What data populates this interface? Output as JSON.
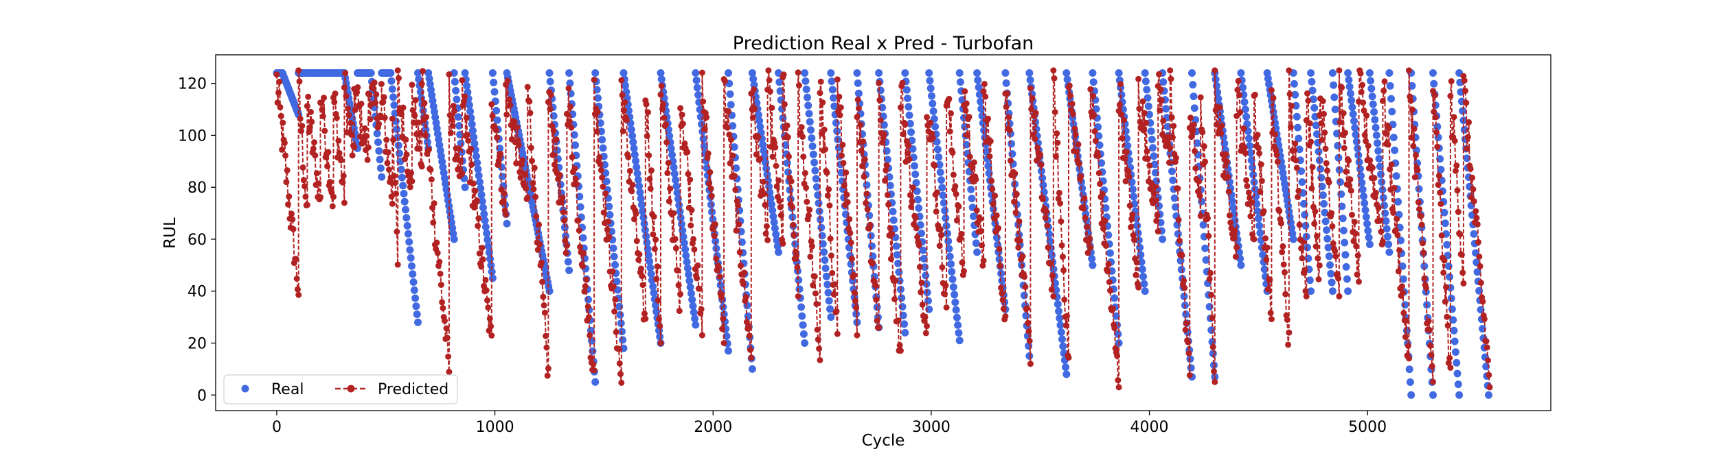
{
  "chart_data": {
    "type": "scatter",
    "title": "Prediction Real x Pred - Turbofan",
    "xlabel": "Cycle",
    "ylabel": "RUL",
    "xlim": [
      -280,
      5840
    ],
    "ylim": [
      -6,
      131
    ],
    "x_ticks": [
      0,
      1000,
      2000,
      3000,
      4000,
      5000
    ],
    "x_tick_labels": [
      "0",
      "1000",
      "2000",
      "3000",
      "4000",
      "5000"
    ],
    "y_ticks": [
      0,
      20,
      40,
      60,
      80,
      100,
      120
    ],
    "y_tick_labels": [
      "0",
      "20",
      "40",
      "60",
      "80",
      "100",
      "120"
    ],
    "grid": false,
    "legend_position": "lower-left",
    "colors": {
      "real": "#4169E1",
      "predicted": "#B22222"
    },
    "series": [
      {
        "name": "Real",
        "style": "markers",
        "segments": [
          [
            0,
            26,
            124,
            124
          ],
          [
            26,
            100,
            124,
            108
          ],
          [
            100,
            185,
            124,
            124
          ],
          [
            185,
            248,
            124,
            124
          ],
          [
            248,
            310,
            124,
            124
          ],
          [
            310,
            370,
            124,
            95
          ],
          [
            370,
            432,
            124,
            124
          ],
          [
            432,
            481,
            124,
            84
          ],
          [
            481,
            522,
            124,
            124
          ],
          [
            522,
            647,
            124,
            28
          ],
          [
            647,
            695,
            124,
            95
          ],
          [
            695,
            813,
            124,
            60
          ],
          [
            813,
            863,
            124,
            80
          ],
          [
            863,
            990,
            124,
            45
          ],
          [
            990,
            1055,
            124,
            66
          ],
          [
            1055,
            1250,
            124,
            40
          ],
          [
            1250,
            1340,
            124,
            48
          ],
          [
            1340,
            1460,
            124,
            5
          ],
          [
            1460,
            1590,
            124,
            18
          ],
          [
            1590,
            1760,
            124,
            20
          ],
          [
            1760,
            1920,
            124,
            27
          ],
          [
            1920,
            2070,
            124,
            17
          ],
          [
            2070,
            2180,
            124,
            10
          ],
          [
            2180,
            2300,
            124,
            55
          ],
          [
            2300,
            2420,
            124,
            20
          ],
          [
            2420,
            2540,
            124,
            30
          ],
          [
            2540,
            2660,
            124,
            28
          ],
          [
            2660,
            2760,
            124,
            26
          ],
          [
            2760,
            2880,
            124,
            24
          ],
          [
            2880,
            2990,
            124,
            33
          ],
          [
            2990,
            3130,
            124,
            21
          ],
          [
            3130,
            3210,
            124,
            55
          ],
          [
            3210,
            3340,
            124,
            33
          ],
          [
            3340,
            3450,
            124,
            15
          ],
          [
            3450,
            3620,
            124,
            8
          ],
          [
            3620,
            3740,
            124,
            50
          ],
          [
            3740,
            3860,
            124,
            20
          ],
          [
            3860,
            3980,
            124,
            40
          ],
          [
            3980,
            4060,
            124,
            60
          ],
          [
            4060,
            4195,
            124,
            7
          ],
          [
            4195,
            4300,
            124,
            7
          ],
          [
            4300,
            4420,
            124,
            50
          ],
          [
            4420,
            4540,
            124,
            40
          ],
          [
            4540,
            4660,
            124,
            60
          ],
          [
            4660,
            4740,
            124,
            40
          ],
          [
            4740,
            4840,
            124,
            40
          ],
          [
            4840,
            4910,
            124,
            40
          ],
          [
            4910,
            5010,
            124,
            58
          ],
          [
            5010,
            5100,
            124,
            55
          ],
          [
            5100,
            5200,
            124,
            0
          ],
          [
            5200,
            5300,
            124,
            0
          ],
          [
            5300,
            5420,
            124,
            0
          ],
          [
            5420,
            5555,
            124,
            0
          ]
        ]
      },
      {
        "name": "Predicted",
        "style": "dashed-line-markers",
        "segments": [
          [
            0,
            100,
            120,
            40
          ],
          [
            100,
            140,
            118,
            68
          ],
          [
            140,
            200,
            112,
            74
          ],
          [
            200,
            260,
            118,
            73
          ],
          [
            260,
            310,
            115,
            76
          ],
          [
            310,
            355,
            118,
            90
          ],
          [
            355,
            420,
            118,
            92
          ],
          [
            420,
            480,
            118,
            105
          ],
          [
            480,
            530,
            116,
            75
          ],
          [
            530,
            555,
            112,
            50
          ],
          [
            555,
            620,
            118,
            80
          ],
          [
            620,
            665,
            115,
            90
          ],
          [
            665,
            790,
            118,
            10
          ],
          [
            790,
            850,
            115,
            80
          ],
          [
            850,
            985,
            115,
            20
          ],
          [
            985,
            1050,
            118,
            68
          ],
          [
            1050,
            1150,
            118,
            74
          ],
          [
            1150,
            1245,
            118,
            7
          ],
          [
            1245,
            1330,
            116,
            55
          ],
          [
            1330,
            1455,
            118,
            6
          ],
          [
            1455,
            1580,
            118,
            5
          ],
          [
            1580,
            1690,
            118,
            27
          ],
          [
            1690,
            1760,
            118,
            22
          ],
          [
            1760,
            1850,
            118,
            34
          ],
          [
            1850,
            1950,
            118,
            25
          ],
          [
            1950,
            2050,
            118,
            22
          ],
          [
            2050,
            2175,
            118,
            15
          ],
          [
            2175,
            2250,
            118,
            60
          ],
          [
            2250,
            2320,
            118,
            60
          ],
          [
            2320,
            2390,
            118,
            40
          ],
          [
            2390,
            2490,
            118,
            15
          ],
          [
            2490,
            2570,
            118,
            25
          ],
          [
            2570,
            2660,
            118,
            25
          ],
          [
            2660,
            2760,
            118,
            25
          ],
          [
            2760,
            2860,
            118,
            14
          ],
          [
            2860,
            2980,
            118,
            24
          ],
          [
            2980,
            3070,
            118,
            34
          ],
          [
            3070,
            3150,
            118,
            45
          ],
          [
            3150,
            3240,
            118,
            50
          ],
          [
            3240,
            3340,
            118,
            30
          ],
          [
            3340,
            3455,
            118,
            14
          ],
          [
            3455,
            3560,
            118,
            40
          ],
          [
            3560,
            3630,
            118,
            13
          ],
          [
            3630,
            3730,
            118,
            53
          ],
          [
            3730,
            3860,
            118,
            5
          ],
          [
            3860,
            3950,
            118,
            40
          ],
          [
            3950,
            4040,
            118,
            65
          ],
          [
            4040,
            4095,
            118,
            90
          ],
          [
            4095,
            4185,
            118,
            7
          ],
          [
            4185,
            4235,
            112,
            70
          ],
          [
            4235,
            4300,
            116,
            7
          ],
          [
            4300,
            4400,
            118,
            55
          ],
          [
            4400,
            4480,
            118,
            60
          ],
          [
            4480,
            4560,
            116,
            30
          ],
          [
            4560,
            4640,
            115,
            20
          ],
          [
            4640,
            4720,
            116,
            40
          ],
          [
            4720,
            4780,
            116,
            45
          ],
          [
            4780,
            4870,
            118,
            40
          ],
          [
            4870,
            4960,
            118,
            45
          ],
          [
            4960,
            5070,
            118,
            60
          ],
          [
            5070,
            5190,
            118,
            12
          ],
          [
            5190,
            5300,
            122,
            5
          ],
          [
            5300,
            5380,
            118,
            7
          ],
          [
            5380,
            5440,
            118,
            45
          ],
          [
            5440,
            5560,
            118,
            5
          ]
        ]
      }
    ]
  }
}
